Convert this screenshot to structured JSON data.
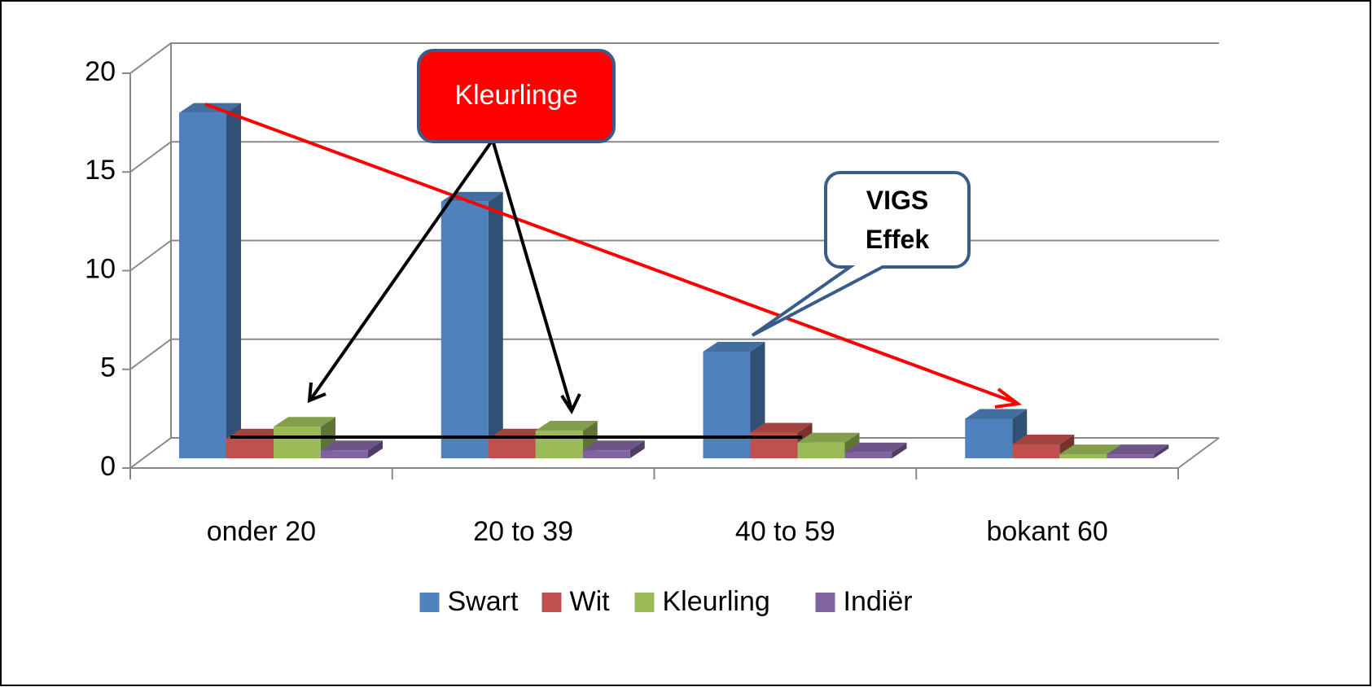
{
  "chart_data": {
    "type": "bar3d",
    "categories": [
      "onder 20",
      "20 to 39",
      "40 to 59",
      "bokant 60"
    ],
    "series": [
      {
        "name": "Swart",
        "color": "#4f81bd",
        "values": [
          17.5,
          13,
          5.4,
          2
        ]
      },
      {
        "name": "Wit",
        "color": "#c0504d",
        "values": [
          1,
          1,
          1.3,
          0.7
        ]
      },
      {
        "name": "Kleurling",
        "color": "#9bbb59",
        "values": [
          1.6,
          1.4,
          0.8,
          0.2
        ]
      },
      {
        "name": "Indiër",
        "color": "#8064a2",
        "values": [
          0.4,
          0.4,
          0.3,
          0.2
        ]
      }
    ],
    "ylim": [
      0,
      20
    ],
    "yticks": [
      0,
      5,
      10,
      15,
      20
    ],
    "grid": true,
    "legend": "bottom",
    "annotations": [
      "Kleurlinge",
      "VIGS Effek"
    ]
  }
}
